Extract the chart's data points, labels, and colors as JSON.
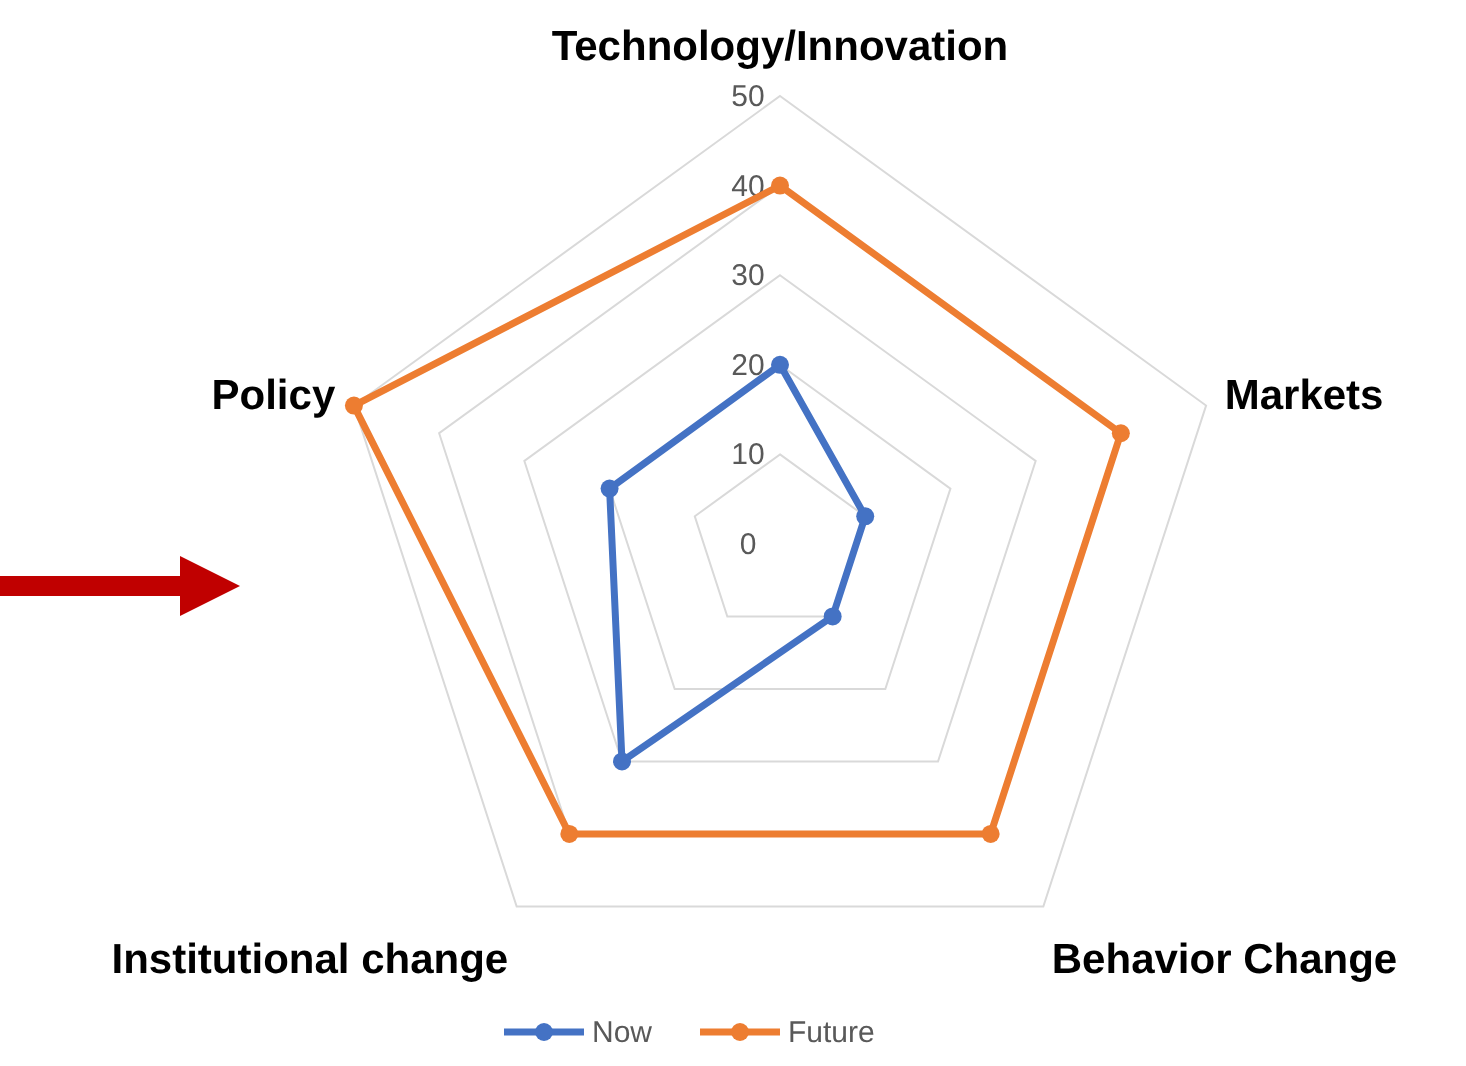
{
  "chart_data": {
    "type": "radar",
    "categories": [
      "Technology/Innovation",
      "Markets",
      "Behavior Change",
      "Institutional change",
      "Policy"
    ],
    "series": [
      {
        "name": "Now",
        "color": "#4472c4",
        "values": [
          20,
          10,
          10,
          30,
          20
        ]
      },
      {
        "name": "Future",
        "color": "#ed7d31",
        "values": [
          40,
          40,
          40,
          40,
          50
        ]
      }
    ],
    "ylim": [
      0,
      50
    ],
    "yticks": [
      0,
      10,
      20,
      30,
      40,
      50
    ],
    "grid": true,
    "legend": "bottom",
    "marker": "circle"
  }
}
